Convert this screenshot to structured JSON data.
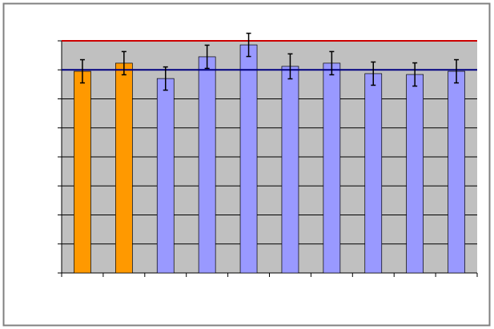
{
  "chart_data": {
    "type": "bar",
    "categories": [
      null,
      null,
      null,
      null,
      null,
      null,
      null,
      null,
      null,
      null
    ],
    "values": [
      6.95,
      7.23,
      6.7,
      7.45,
      7.86,
      7.12,
      7.23,
      6.87,
      6.84,
      6.95
    ],
    "errors": [
      0.4,
      0.4,
      0.4,
      0.4,
      0.4,
      0.43,
      0.4,
      0.4,
      0.4,
      0.4
    ],
    "colors": [
      "#ff9900",
      "#ff9900",
      "#9999ff",
      "#9999ff",
      "#9999ff",
      "#9999ff",
      "#9999ff",
      "#9999ff",
      "#9999ff",
      "#9999ff"
    ],
    "reference_lines": [
      {
        "value": 8,
        "color": "#cc0000"
      },
      {
        "value": 7,
        "color": "#000080"
      }
    ],
    "ylim": [
      0,
      8
    ],
    "yticks": [
      0,
      1,
      2,
      3,
      4,
      5,
      6,
      7,
      8
    ],
    "grid": true,
    "background": "#c0c0c0"
  }
}
